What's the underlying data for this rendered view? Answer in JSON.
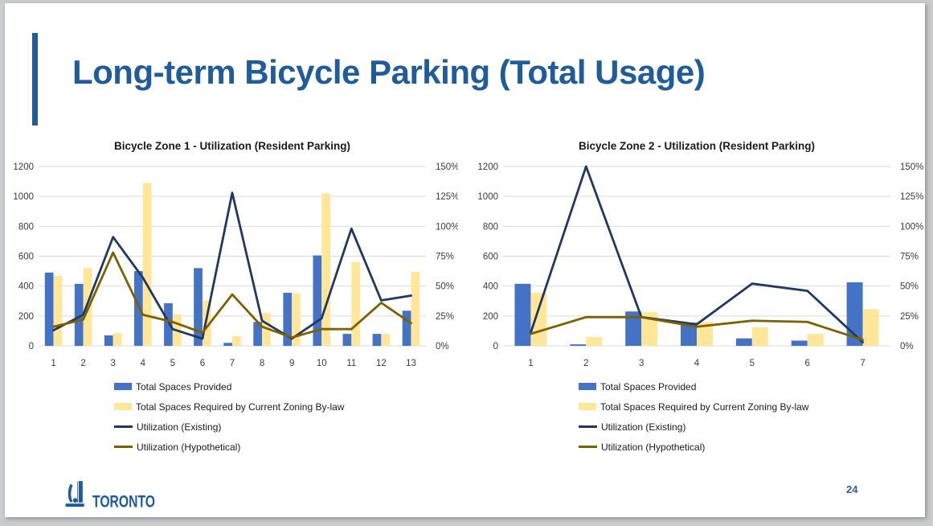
{
  "slide": {
    "title": "Long-term Bicycle Parking (Total Usage)",
    "page_number": "24",
    "footer_logo_text": "TORONTO"
  },
  "colors": {
    "title_blue": "#1F5C99",
    "accent_bar_blue": "#1F5C99",
    "logo_blue": "#1D5C9C",
    "page_number_blue": "#2E5F94",
    "bar_provided_blue": "#4472C4",
    "bar_required_yellow": "#FFE699",
    "line_existing_navy": "#1F3864",
    "line_hypothetical_olive": "#7F6000",
    "gridline_gray": "#D9D9D9",
    "axis_text": "#3B3B3B"
  },
  "chart_data": [
    {
      "type": "bar",
      "subtype": "combo-bar-line-dual-axis",
      "title": "Bicycle Zone 1 - Utilization (Resident Parking)",
      "categories": [
        "1",
        "2",
        "3",
        "4",
        "5",
        "6",
        "7",
        "8",
        "9",
        "10",
        "11",
        "12",
        "13"
      ],
      "left_axis": {
        "min": 0,
        "max": 1200,
        "tick_labels": [
          "1200",
          "1000",
          "800",
          "600",
          "400",
          "200",
          "0"
        ]
      },
      "right_axis": {
        "min": 0,
        "max": 150,
        "unit": "%",
        "tick_labels": [
          "150%",
          "125%",
          "100%",
          "75%",
          "50%",
          "25%",
          "0%"
        ]
      },
      "grid": true,
      "legend_position": "bottom-left",
      "series": [
        {
          "name": "Total Spaces Provided",
          "type": "bar",
          "axis": "left",
          "color": "#4472C4",
          "values": [
            490,
            415,
            70,
            500,
            285,
            520,
            20,
            160,
            355,
            605,
            80,
            80,
            235
          ]
        },
        {
          "name": "Total Spaces Required by Current Zoning By-law",
          "type": "bar",
          "axis": "left",
          "color": "#FFE699",
          "values": [
            470,
            520,
            85,
            1090,
            210,
            305,
            65,
            220,
            350,
            1020,
            560,
            80,
            495
          ]
        },
        {
          "name": "Utilization (Existing)",
          "type": "line",
          "axis": "right",
          "color": "#1F3864",
          "values": [
            13,
            26,
            91,
            57,
            14,
            6,
            128,
            21,
            6,
            23,
            98,
            38,
            42
          ]
        },
        {
          "name": "Utilization (Hypothetical)",
          "type": "line",
          "axis": "right",
          "color": "#7F6000",
          "values": [
            16,
            22,
            78,
            26,
            20,
            11,
            43,
            16,
            7,
            14,
            14,
            36,
            19
          ]
        }
      ]
    },
    {
      "type": "bar",
      "subtype": "combo-bar-line-dual-axis",
      "title": "Bicycle Zone 2 - Utilization (Resident Parking)",
      "categories": [
        "1",
        "2",
        "3",
        "4",
        "5",
        "6",
        "7"
      ],
      "left_axis": {
        "min": 0,
        "max": 1200,
        "tick_labels": [
          "1200",
          "1000",
          "800",
          "600",
          "400",
          "200",
          "0"
        ]
      },
      "right_axis": {
        "min": 0,
        "max": 150,
        "unit": "%",
        "tick_labels": [
          "150%",
          "125%",
          "100%",
          "75%",
          "50%",
          "25%",
          "0%"
        ]
      },
      "grid": true,
      "legend_position": "bottom-left",
      "series": [
        {
          "name": "Total Spaces Provided",
          "type": "bar",
          "axis": "left",
          "color": "#4472C4",
          "values": [
            415,
            10,
            230,
            155,
            50,
            35,
            425
          ]
        },
        {
          "name": "Total Spaces Required by Current Zoning By-law",
          "type": "bar",
          "axis": "left",
          "color": "#FFE699",
          "values": [
            355,
            60,
            225,
            160,
            125,
            80,
            245
          ]
        },
        {
          "name": "Utilization (Existing)",
          "type": "line",
          "axis": "right",
          "color": "#1F3864",
          "values": [
            11,
            150,
            24,
            18,
            52,
            46,
            3
          ]
        },
        {
          "name": "Utilization (Hypothetical)",
          "type": "line",
          "axis": "right",
          "color": "#7F6000",
          "values": [
            10,
            24,
            24,
            16,
            21,
            20,
            5
          ]
        }
      ]
    }
  ]
}
